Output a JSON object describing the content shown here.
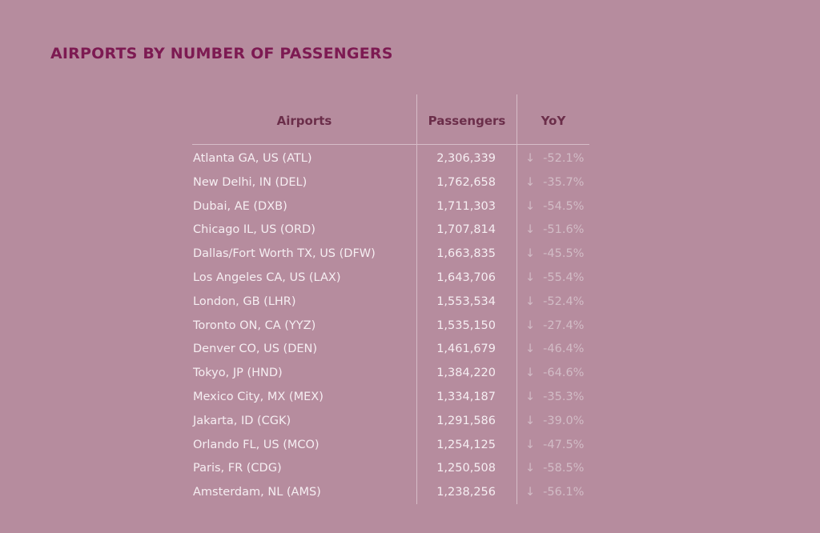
{
  "title": "AIRPORTS BY NUMBER OF PASSENGERS",
  "colors": {
    "background": "#b68c9e",
    "title": "#7d1a52",
    "header": "#6b2e4a",
    "text": "#f6eef2",
    "yoy": "#d2bcc6"
  },
  "chart_data": {
    "type": "table",
    "title": "AIRPORTS BY NUMBER OF PASSENGERS",
    "columns": [
      "Airports",
      "Passengers",
      "YoY"
    ],
    "yoy_icon": "arrow-down-icon",
    "rows": [
      {
        "airport": "Atlanta GA, US (ATL)",
        "passengers": "2,306,339",
        "arrow": "↓",
        "yoy": "-52.1%"
      },
      {
        "airport": "New Delhi, IN (DEL)",
        "passengers": "1,762,658",
        "arrow": "↓",
        "yoy": "-35.7%"
      },
      {
        "airport": "Dubai, AE (DXB)",
        "passengers": "1,711,303",
        "arrow": "↓",
        "yoy": "-54.5%"
      },
      {
        "airport": "Chicago IL, US (ORD)",
        "passengers": "1,707,814",
        "arrow": "↓",
        "yoy": "-51.6%"
      },
      {
        "airport": "Dallas/Fort Worth TX, US (DFW)",
        "passengers": "1,663,835",
        "arrow": "↓",
        "yoy": "-45.5%"
      },
      {
        "airport": "Los Angeles CA, US (LAX)",
        "passengers": "1,643,706",
        "arrow": "↓",
        "yoy": "-55.4%"
      },
      {
        "airport": "London, GB (LHR)",
        "passengers": "1,553,534",
        "arrow": "↓",
        "yoy": "-52.4%"
      },
      {
        "airport": "Toronto ON, CA (YYZ)",
        "passengers": "1,535,150",
        "arrow": "↓",
        "yoy": "-27.4%"
      },
      {
        "airport": "Denver CO, US (DEN)",
        "passengers": "1,461,679",
        "arrow": "↓",
        "yoy": "-46.4%"
      },
      {
        "airport": "Tokyo, JP (HND)",
        "passengers": "1,384,220",
        "arrow": "↓",
        "yoy": "-64.6%"
      },
      {
        "airport": "Mexico City, MX (MEX)",
        "passengers": "1,334,187",
        "arrow": "↓",
        "yoy": "-35.3%"
      },
      {
        "airport": "Jakarta, ID (CGK)",
        "passengers": "1,291,586",
        "arrow": "↓",
        "yoy": "-39.0%"
      },
      {
        "airport": "Orlando FL, US (MCO)",
        "passengers": "1,254,125",
        "arrow": "↓",
        "yoy": "-47.5%"
      },
      {
        "airport": "Paris, FR (CDG)",
        "passengers": "1,250,508",
        "arrow": "↓",
        "yoy": "-58.5%"
      },
      {
        "airport": "Amsterdam, NL (AMS)",
        "passengers": "1,238,256",
        "arrow": "↓",
        "yoy": "-56.1%"
      }
    ]
  }
}
